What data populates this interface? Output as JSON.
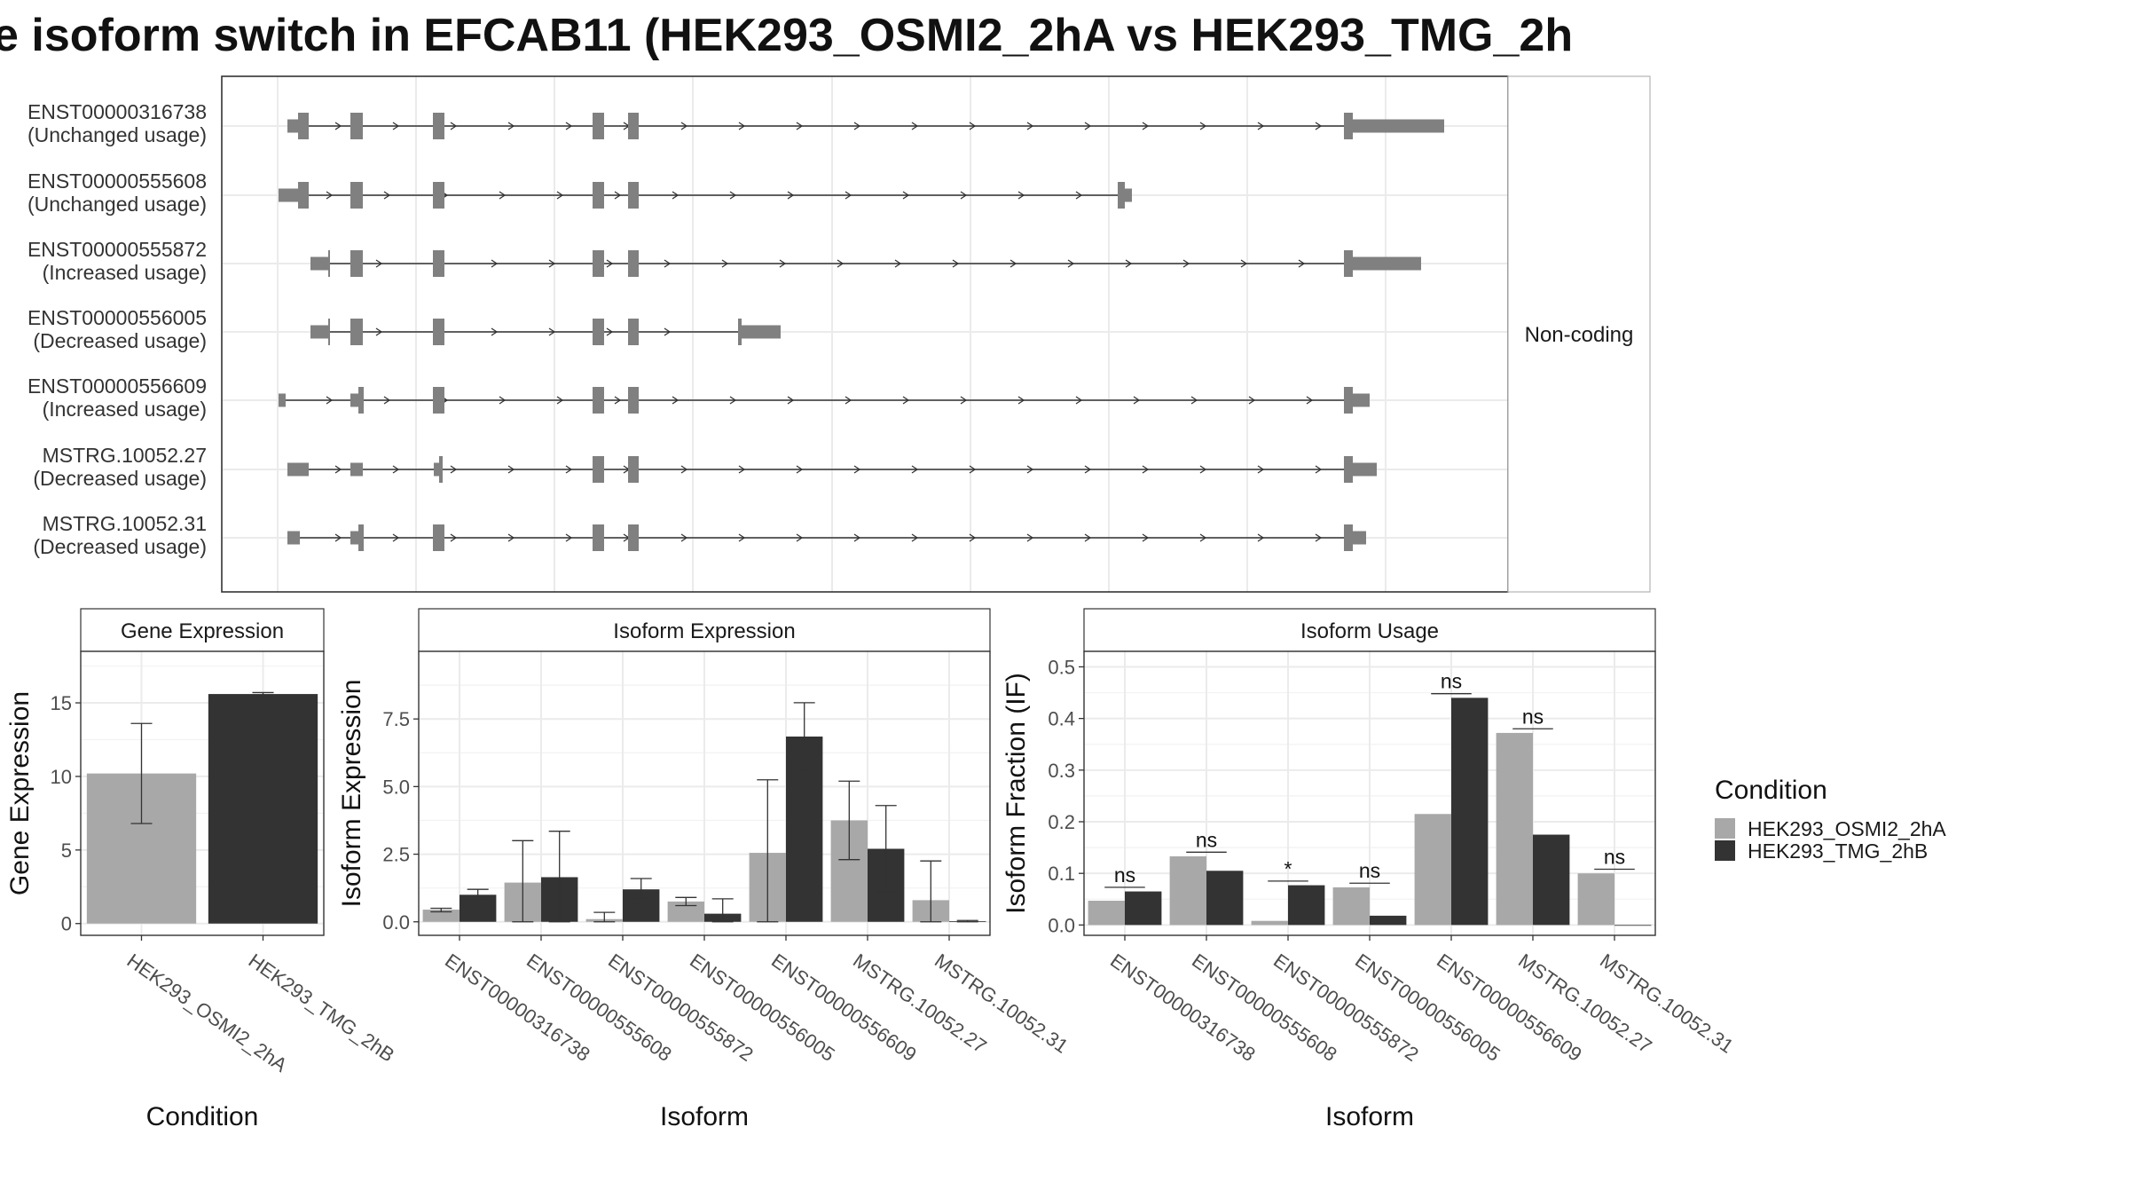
{
  "title": "e isoform switch in EFCAB11 (HEK293_OSMI2_2hA vs HEK293_TMG_2h",
  "colors": {
    "condition_a": "#a8a8a8",
    "condition_b": "#333333",
    "exon": "#808080",
    "grid": "#ebebeb",
    "panel_border": "#333333"
  },
  "structure": {
    "strip_label": "Non-coding",
    "transcripts": [
      {
        "id": "ENST00000316738",
        "status": "(Unchanged usage)"
      },
      {
        "id": "ENST00000555608",
        "status": "(Unchanged usage)"
      },
      {
        "id": "ENST00000555872",
        "status": "(Increased usage)"
      },
      {
        "id": "ENST00000556005",
        "status": "(Decreased usage)"
      },
      {
        "id": "ENST00000556609",
        "status": "(Increased usage)"
      },
      {
        "id": "MSTRG.10052.27",
        "status": "(Decreased usage)"
      },
      {
        "id": "MSTRG.10052.31",
        "status": "(Decreased usage)"
      }
    ]
  },
  "legend": {
    "title": "Condition",
    "items": [
      "HEK293_OSMI2_2hA",
      "HEK293_TMG_2hB"
    ]
  },
  "chart_data": [
    {
      "type": "bar",
      "title": "Gene Expression",
      "xlabel": "Condition",
      "ylabel": "Gene Expression",
      "categories": [
        "HEK293_OSMI2_2hA",
        "HEK293_TMG_2hB"
      ],
      "values": [
        10.2,
        15.6
      ],
      "error_low": [
        6.8,
        15.5
      ],
      "error_high": [
        13.6,
        15.7
      ],
      "ylim": [
        -0.8,
        18.5
      ],
      "yticks": [
        0,
        5,
        10,
        15
      ],
      "ytick_labels": [
        "0",
        "5",
        "10",
        "15"
      ]
    },
    {
      "type": "bar",
      "title": "Isoform Expression",
      "xlabel": "Isoform",
      "ylabel": "Isoform Expression",
      "categories": [
        "ENST00000316738",
        "ENST00000555608",
        "ENST00000555872",
        "ENST00000556005",
        "ENST00000556609",
        "MSTRG.10052.27",
        "MSTRG.10052.31"
      ],
      "series": [
        {
          "name": "HEK293_OSMI2_2hA",
          "values": [
            0.45,
            1.45,
            0.1,
            0.75,
            2.55,
            3.75,
            0.8
          ],
          "error_low": [
            0.37,
            0.0,
            0.0,
            0.6,
            0.0,
            2.3,
            0.0
          ],
          "error_high": [
            0.5,
            3.0,
            0.35,
            0.9,
            5.25,
            5.2,
            2.25
          ]
        },
        {
          "name": "HEK293_TMG_2hB",
          "values": [
            1.0,
            1.65,
            1.2,
            0.3,
            6.85,
            2.7,
            0.02
          ],
          "error_low": [
            0.85,
            0.0,
            0.85,
            0.0,
            5.6,
            1.1,
            0.0
          ],
          "error_high": [
            1.2,
            3.35,
            1.6,
            0.85,
            8.1,
            4.3,
            0.05
          ]
        }
      ],
      "ylim": [
        -0.5,
        10.0
      ],
      "yticks": [
        0,
        2.5,
        5.0,
        7.5
      ],
      "ytick_labels": [
        "0.0",
        "2.5",
        "5.0",
        "7.5"
      ]
    },
    {
      "type": "bar",
      "title": "Isoform Usage",
      "xlabel": "Isoform",
      "ylabel": "Isoform Fraction (IF)",
      "categories": [
        "ENST00000316738",
        "ENST00000555608",
        "ENST00000555872",
        "ENST00000556005",
        "ENST00000556609",
        "MSTRG.10052.27",
        "MSTRG.10052.31"
      ],
      "series": [
        {
          "name": "HEK293_OSMI2_2hA",
          "values": [
            0.047,
            0.133,
            0.008,
            0.073,
            0.215,
            0.372,
            0.1
          ]
        },
        {
          "name": "HEK293_TMG_2hB",
          "values": [
            0.065,
            0.105,
            0.077,
            0.018,
            0.44,
            0.175,
            0.0
          ]
        }
      ],
      "significance": [
        "ns",
        "ns",
        "*",
        "ns",
        "ns",
        "ns",
        "ns"
      ],
      "ylim": [
        -0.02,
        0.53
      ],
      "yticks": [
        0.0,
        0.1,
        0.2,
        0.3,
        0.4,
        0.5
      ],
      "ytick_labels": [
        "0.0",
        "0.1",
        "0.2",
        "0.3",
        "0.4",
        "0.5"
      ]
    }
  ]
}
